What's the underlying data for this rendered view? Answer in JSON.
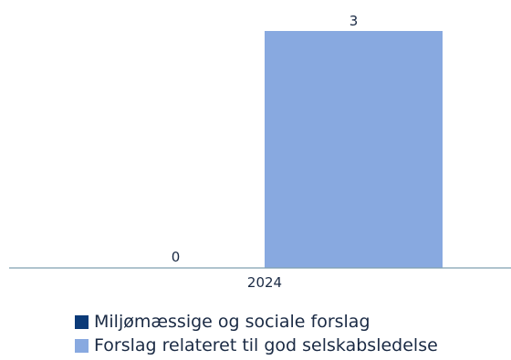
{
  "chart_data": {
    "type": "bar",
    "categories": [
      "2024"
    ],
    "series": [
      {
        "name": "Miljømæssige og sociale forslag",
        "values": [
          0
        ],
        "color": "#0b3a78"
      },
      {
        "name": "Forslag relateret til god selskabsledelse",
        "values": [
          3
        ],
        "color": "#88a9e0"
      }
    ],
    "data_labels": true,
    "ylim": [
      0,
      3.2
    ],
    "grid": false,
    "legend_position": "bottom-left",
    "axis_color": "#7f9fb0"
  }
}
